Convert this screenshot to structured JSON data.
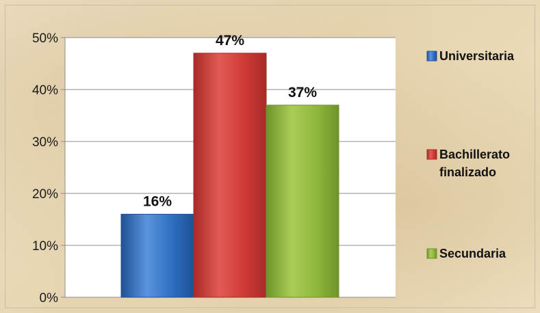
{
  "chart_data": {
    "type": "bar",
    "categories": [
      "Universitaria",
      "Bachillerato finalizado",
      "Secundaria"
    ],
    "values": [
      16,
      47,
      37
    ],
    "data_labels": [
      "16%",
      "47%",
      "37%"
    ],
    "ylim": [
      0,
      50
    ],
    "yticks": [
      0,
      10,
      20,
      30,
      40,
      50
    ],
    "ytick_labels": [
      "0%",
      "10%",
      "20%",
      "30%",
      "40%",
      "50%"
    ],
    "grid": true,
    "legend_position": "right",
    "legend": [
      {
        "lines": [
          "Universitaria"
        ]
      },
      {
        "lines": [
          "Bachillerato",
          "finalizado"
        ]
      },
      {
        "lines": [
          "Secundaria"
        ]
      }
    ],
    "colors": [
      "#2e6fc2",
      "#cf3a36",
      "#8fb63c"
    ],
    "colors_dark": [
      "#1f5196",
      "#a82a27",
      "#6e9329"
    ],
    "colors_light": [
      "#5a93dd",
      "#e25b55",
      "#aacd57"
    ],
    "background_color": "#efe3c8",
    "plot_background_color": "#ffffff"
  }
}
